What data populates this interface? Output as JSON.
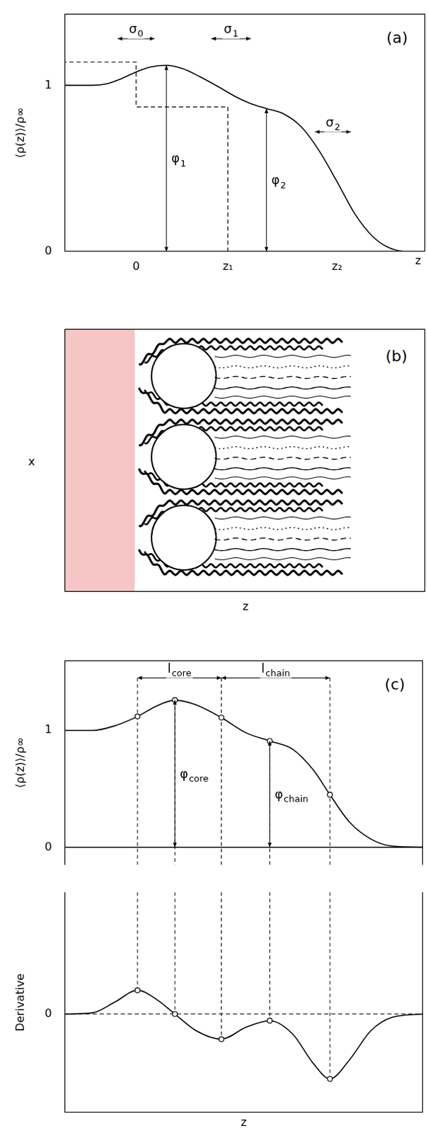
{
  "chart_data": [
    {
      "type": "line",
      "panel": "(a)",
      "y_label": "⟨ρ(z)⟩/ρ∞",
      "x_label": "z",
      "xlim": [
        -0.78,
        3.15
      ],
      "ylim": [
        0,
        1.43
      ],
      "xticks": [
        0,
        {
          "value": 1,
          "label": "z₁"
        },
        {
          "value": 2.19,
          "label": "z₂"
        }
      ],
      "yticks": [
        0,
        1
      ],
      "grid": false,
      "series": [
        {
          "type": "line",
          "color": "#000000",
          "line_style": "solid",
          "x": [
            -0.78,
            -0.47,
            -0.31,
            -0.16,
            0,
            0.16,
            0.33,
            0.51,
            0.7,
            0.9,
            1.09,
            1.25,
            1.42,
            1.6,
            1.8,
            1.99,
            2.19,
            2.38,
            2.58,
            2.77,
            2.97,
            3.15
          ],
          "values": [
            1,
            1,
            1.01,
            1.04,
            1.08,
            1.11,
            1.12,
            1.1,
            1.05,
            0.99,
            0.93,
            0.89,
            0.86,
            0.83,
            0.75,
            0.61,
            0.42,
            0.23,
            0.09,
            0.02,
            0,
            0
          ]
        },
        {
          "type": "step",
          "color": "#000000",
          "line_style": "dashed",
          "x": [
            -0.78,
            0,
            1,
            2.19,
            3.15
          ],
          "values": [
            1,
            1.14,
            0.87,
            0,
            0
          ]
        }
      ],
      "annotations": [
        {
          "text": "σ",
          "sub": "0",
          "x": [
            -0.2,
            0.2
          ],
          "y": 1.28
        },
        {
          "text": "σ",
          "sub": "1",
          "x": [
            0.82,
            1.25
          ],
          "y": 1.28
        },
        {
          "text": "σ",
          "sub": "2",
          "x": [
            1.95,
            2.34
          ],
          "y": 0.72
        },
        {
          "text": "φ",
          "sub": "1",
          "x": 0.33,
          "y": [
            0,
            1.12
          ]
        },
        {
          "text": "φ",
          "sub": "2",
          "x": 1.42,
          "y": [
            0,
            0.86
          ]
        }
      ]
    },
    {
      "type": "line",
      "panel": "(c)",
      "y_label": "⟨ρ(z)⟩/ρ∞",
      "xlim": [
        -0.78,
        3.15
      ],
      "ylim": [
        -0.15,
        1.6
      ],
      "yticks": [
        0,
        1
      ],
      "grid": false,
      "tick_labels": "y",
      "series": [
        {
          "type": "line",
          "color": "#000000",
          "line_style": "solid",
          "x": [
            -0.78,
            3.15
          ],
          "values": [
            0,
            0
          ]
        },
        {
          "type": "line",
          "color": "#000000",
          "line_style": "solid",
          "x": [
            -0.78,
            -0.47,
            -0.23,
            0.02,
            0.23,
            0.43,
            0.66,
            0.94,
            1.21,
            1.47,
            1.72,
            1.95,
            2.13,
            2.34,
            2.58,
            2.81,
            3.15
          ],
          "values": [
            1,
            1,
            1.04,
            1.12,
            1.21,
            1.26,
            1.22,
            1.11,
            0.98,
            0.91,
            0.84,
            0.66,
            0.45,
            0.22,
            0.07,
            0.01,
            0
          ]
        },
        {
          "type": "scatter",
          "color": "#000000",
          "marker": "circle",
          "x": [
            0.02,
            0.43,
            0.94,
            1.47,
            2.13
          ],
          "values": [
            1.12,
            1.26,
            1.11,
            0.91,
            0.45
          ]
        }
      ],
      "annotations": [
        {
          "text": "l",
          "sub": "core",
          "x": [
            0.02,
            0.94
          ],
          "y": 1.45
        },
        {
          "text": "l",
          "sub": "chain",
          "x": [
            0.94,
            2.13
          ],
          "y": 1.45
        },
        {
          "text": "φ",
          "sub": "core",
          "x": 0.43,
          "y": [
            0,
            1.26
          ]
        },
        {
          "text": "φ",
          "sub": "chain",
          "x": 1.47,
          "y": [
            0,
            0.91
          ]
        }
      ]
    },
    {
      "type": "line",
      "y_label": "Derivative",
      "x_label": "z",
      "xlim": [
        -0.78,
        3.15
      ],
      "ylim": [
        -1.49,
        1.84
      ],
      "yticks": [
        0
      ],
      "grid": false,
      "tick_labels": "y",
      "series": [
        {
          "type": "line",
          "color": "#000000",
          "line_style": "dashed",
          "x": [
            -0.78,
            3.15
          ],
          "values": [
            0,
            0
          ]
        },
        {
          "type": "line",
          "color": "#000000",
          "line_style": "solid",
          "x": [
            -0.78,
            -0.47,
            -0.23,
            0.02,
            0.23,
            0.43,
            0.66,
            0.94,
            1.21,
            1.47,
            1.72,
            1.95,
            2.13,
            2.34,
            2.58,
            2.81,
            3.15
          ],
          "values": [
            0,
            0.02,
            0.18,
            0.36,
            0.22,
            0,
            -0.25,
            -0.38,
            -0.2,
            -0.1,
            -0.3,
            -0.75,
            -0.98,
            -0.7,
            -0.25,
            -0.05,
            0
          ]
        },
        {
          "type": "scatter",
          "color": "#000000",
          "marker": "circle",
          "x": [
            0.02,
            0.43,
            0.94,
            1.47,
            2.13
          ],
          "values": [
            0.36,
            0,
            -0.38,
            -0.1,
            -0.98
          ]
        }
      ],
      "annotations": []
    }
  ],
  "diagram": {
    "panel": "(b)",
    "vertical_label": "x",
    "horizontal_label": "z",
    "molecules": 3,
    "color": "#f6c6c6"
  }
}
